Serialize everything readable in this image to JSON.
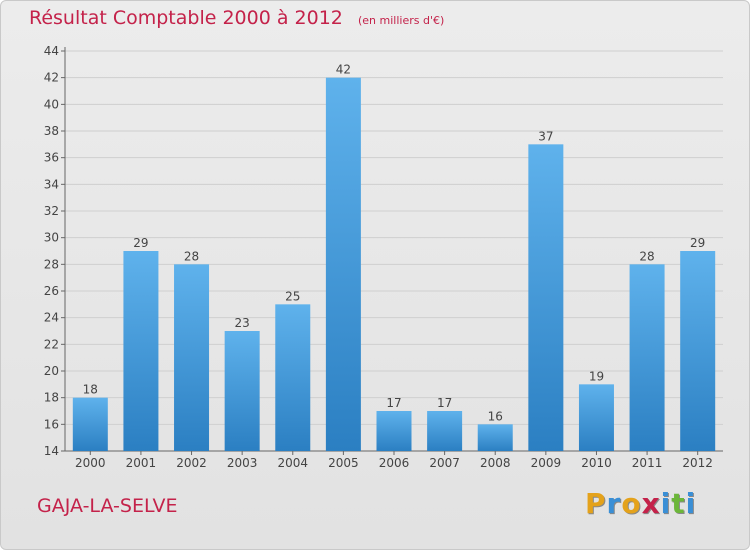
{
  "header": {
    "title": "Résultat Comptable 2000 à 2012",
    "unit": "(en milliers d'€)"
  },
  "footer": {
    "commune": "GAJA-LA-SELVE",
    "brand_letters": [
      "P",
      "r",
      "o",
      "x",
      "i",
      "t",
      "i"
    ],
    "brand_colors": [
      "#e4a21b",
      "#3a8fd6",
      "#e4a21b",
      "#c4224a",
      "#3a8fd6",
      "#6cb63a",
      "#3a8fd6"
    ]
  },
  "colors": {
    "bar_light": "#5fb2ec",
    "bar_dark": "#2b7fc2",
    "title": "#c4224a"
  },
  "chart_data": {
    "type": "bar",
    "categories": [
      "2000",
      "2001",
      "2002",
      "2003",
      "2004",
      "2005",
      "2006",
      "2007",
      "2008",
      "2009",
      "2010",
      "2011",
      "2012"
    ],
    "values": [
      18,
      29,
      28,
      23,
      25,
      42,
      17,
      17,
      16,
      37,
      19,
      28,
      29
    ],
    "ylim": [
      14,
      44
    ],
    "yticks": [
      14,
      16,
      18,
      20,
      22,
      24,
      26,
      28,
      30,
      32,
      34,
      36,
      38,
      40,
      42,
      44
    ],
    "grid": true,
    "data_labels": true
  }
}
